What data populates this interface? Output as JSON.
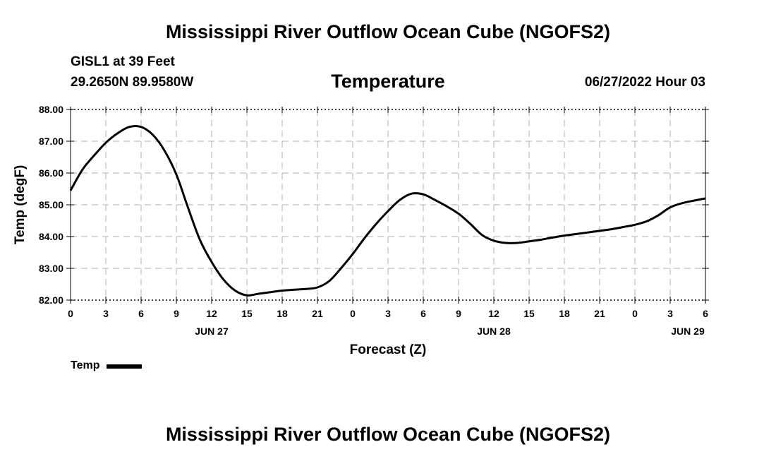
{
  "page": {
    "title_top": "Mississippi River Outflow Ocean Cube (NGOFS2)",
    "title_bottom": "Mississippi River Outflow Ocean Cube (NGOFS2)",
    "station": "GISL1 at 39 Feet",
    "coords": "29.2650N  89.9580W",
    "run_date": "06/27/2022 Hour 03"
  },
  "chart_data": {
    "type": "line",
    "title": "Temperature",
    "xlabel": "Forecast (Z)",
    "ylabel": "Temp (degF)",
    "xlim": [
      0,
      54
    ],
    "ylim": [
      82,
      88
    ],
    "y_ticks": [
      82,
      83,
      84,
      85,
      86,
      87,
      88
    ],
    "y_tick_labels": [
      "82.00",
      "83.00",
      "84.00",
      "85.00",
      "86.00",
      "87.00",
      "88.00"
    ],
    "x_ticks": [
      0,
      3,
      6,
      9,
      12,
      15,
      18,
      21,
      24,
      27,
      30,
      33,
      36,
      39,
      42,
      45,
      48,
      51,
      54
    ],
    "x_tick_labels": [
      "0",
      "3",
      "6",
      "9",
      "12",
      "15",
      "18",
      "21",
      "0",
      "3",
      "6",
      "9",
      "12",
      "15",
      "18",
      "21",
      "0",
      "3",
      "6"
    ],
    "day_labels": [
      {
        "x": 12,
        "label": "JUN 27"
      },
      {
        "x": 36,
        "label": "JUN 28"
      },
      {
        "x": 52.5,
        "label": "JUN 29"
      }
    ],
    "grid": true,
    "legend": [
      {
        "name": "Temp",
        "color": "#000000"
      }
    ],
    "series": [
      {
        "name": "Temp",
        "color": "#000000",
        "x": [
          0,
          1,
          2,
          3,
          4,
          5,
          6,
          7,
          8,
          9,
          10,
          11,
          12,
          13,
          14,
          15,
          16,
          17,
          18,
          19,
          20,
          21,
          22,
          23,
          24,
          25,
          26,
          27,
          28,
          29,
          30,
          31,
          32,
          33,
          34,
          35,
          36,
          37,
          38,
          39,
          40,
          41,
          42,
          43,
          44,
          45,
          46,
          47,
          48,
          49,
          50,
          51,
          52,
          53,
          54
        ],
        "values": [
          85.45,
          86.1,
          86.55,
          86.95,
          87.25,
          87.45,
          87.45,
          87.2,
          86.7,
          85.95,
          84.9,
          83.9,
          83.2,
          82.65,
          82.3,
          82.15,
          82.2,
          82.25,
          82.3,
          82.33,
          82.35,
          82.4,
          82.6,
          83.0,
          83.45,
          83.95,
          84.4,
          84.8,
          85.15,
          85.35,
          85.33,
          85.15,
          84.95,
          84.72,
          84.4,
          84.05,
          83.87,
          83.8,
          83.8,
          83.85,
          83.9,
          83.97,
          84.03,
          84.08,
          84.13,
          84.18,
          84.23,
          84.3,
          84.37,
          84.48,
          84.67,
          84.92,
          85.05,
          85.13,
          85.2
        ]
      }
    ]
  }
}
